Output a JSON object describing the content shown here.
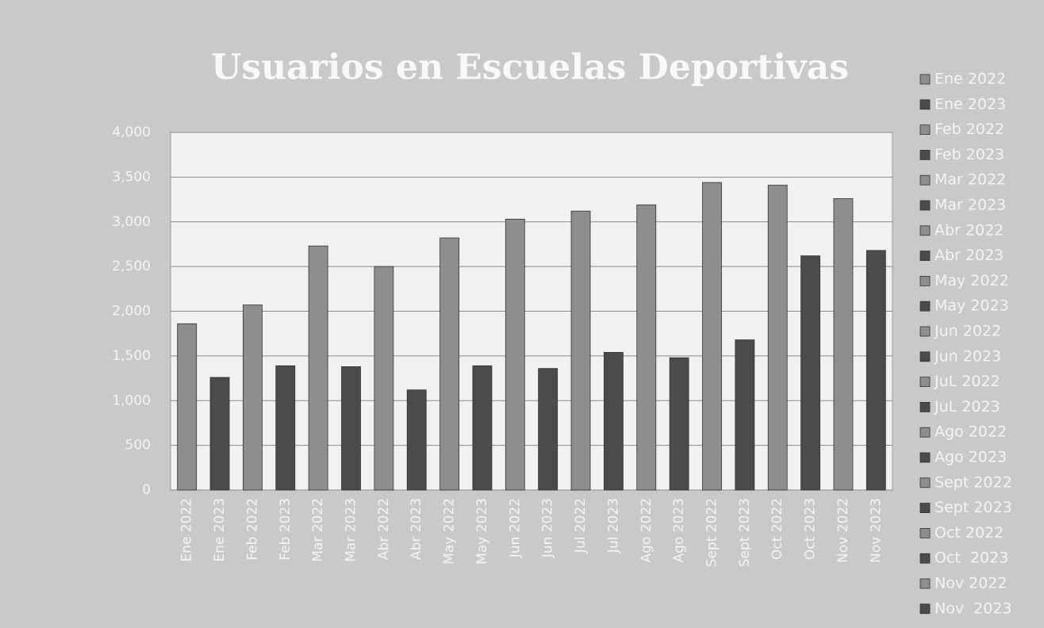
{
  "chart_data": {
    "type": "bar",
    "title": "Usuarios en Escuelas Deportivas",
    "categories": [
      "Ene 2022",
      "Ene 2023",
      "Feb 2022",
      "Feb 2023",
      "Mar 2022",
      "Mar 2023",
      "Abr 2022",
      "Abr 2023",
      "May 2022",
      "May 2023",
      "Jun 2022",
      "Jun 2023",
      "Jul 2022",
      "Jul 2023",
      "Ago 2022",
      "Ago 2023",
      "Sept 2022",
      "Sept 2023",
      "Oct 2022",
      "Oct  2023",
      "Nov 2022",
      "Nov 2023"
    ],
    "values": [
      1860,
      1260,
      2070,
      1390,
      2730,
      1380,
      2500,
      1120,
      2820,
      1390,
      3030,
      1360,
      3120,
      1540,
      3190,
      1480,
      3440,
      1680,
      3410,
      2620,
      3260,
      2680
    ],
    "colors": [
      "#8e8e8e",
      "#4b4b4b",
      "#8e8e8e",
      "#4b4b4b",
      "#8e8e8e",
      "#4b4b4b",
      "#8e8e8e",
      "#4b4b4b",
      "#8e8e8e",
      "#4b4b4b",
      "#8e8e8e",
      "#4b4b4b",
      "#8e8e8e",
      "#4b4b4b",
      "#8e8e8e",
      "#4b4b4b",
      "#8e8e8e",
      "#4b4b4b",
      "#8e8e8e",
      "#4b4b4b",
      "#8e8e8e",
      "#4b4b4b"
    ],
    "legend_labels": [
      "Ene 2022",
      "Ene 2023",
      "Feb 2022",
      "Feb 2023",
      "Mar 2022",
      "Mar 2023",
      "Abr 2022",
      "Abr 2023",
      "May 2022",
      "May 2023",
      "Jun 2022",
      "Jun 2023",
      "JuL 2022",
      "JuL 2023",
      "Ago 2022",
      "Ago 2023",
      "Sept 2022",
      "Sept 2023",
      "Oct 2022",
      "Oct  2023",
      "Nov 2022",
      "Nov  2023"
    ],
    "legend": "right",
    "ylim": [
      0,
      4000
    ],
    "yticks": [
      0,
      500,
      {
        "value": 1000,
        "label": "1,000"
      },
      {
        "value": 1500,
        "label": "1,500"
      },
      {
        "value": 2000,
        "label": "2,000"
      },
      {
        "value": 2500,
        "label": "2,500"
      },
      {
        "value": 3000,
        "label": "3,000"
      },
      {
        "value": 3500,
        "label": "3,500"
      },
      {
        "value": 4000,
        "label": "4,000"
      }
    ],
    "grid": true
  }
}
